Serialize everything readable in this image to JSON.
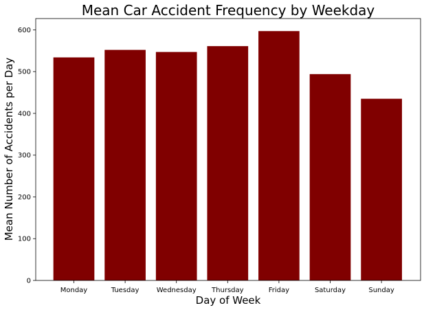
{
  "chart_data": {
    "type": "bar",
    "title": "Mean Car Accident Frequency by Weekday",
    "xlabel": "Day of Week",
    "ylabel": "Mean Number of Accidents per Day",
    "categories": [
      "Monday",
      "Tuesday",
      "Wednesday",
      "Thursday",
      "Friday",
      "Saturday",
      "Sunday"
    ],
    "values": [
      534,
      552,
      547,
      561,
      597,
      494,
      435
    ],
    "ylim": [
      0,
      627
    ],
    "yticks": [
      0,
      100,
      200,
      300,
      400,
      500,
      600
    ],
    "bar_color": "#800000",
    "grid": false,
    "legend": "none"
  }
}
